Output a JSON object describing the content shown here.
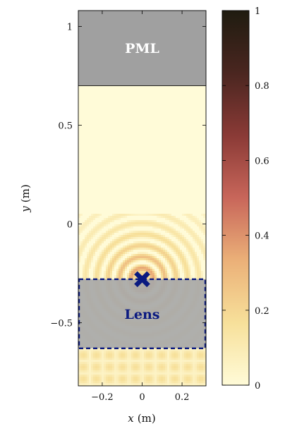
{
  "chart_data": {
    "type": "heatmap",
    "title": "",
    "xlabel_var": "x",
    "xlabel_unit": "(m)",
    "ylabel_var": "y",
    "ylabel_unit": "(m)",
    "xlim": [
      -0.32,
      0.32
    ],
    "ylim": [
      -0.82,
      1.08
    ],
    "xticks": [
      -0.2,
      0,
      0.2
    ],
    "xtick_labels": [
      "−0.2",
      "0",
      "0.2"
    ],
    "yticks": [
      1,
      0.5,
      0,
      -0.5
    ],
    "ytick_labels": [
      "1",
      "0.5",
      "0",
      "−0.5"
    ],
    "colorbar": {
      "range": [
        0,
        1
      ],
      "ticks": [
        0,
        0.2,
        0.4,
        0.6,
        0.8,
        1
      ],
      "tick_labels": [
        "0",
        "0.2",
        "0.4",
        "0.6",
        "0.8",
        "1"
      ],
      "colors": [
        "#fffbd8",
        "#f7e09a",
        "#ebb078",
        "#c8665a",
        "#8a3a36",
        "#4a2620",
        "#1f1c10"
      ]
    },
    "regions": [
      {
        "label": "PML",
        "x": [
          -0.32,
          0.32
        ],
        "y": [
          0.7,
          1.08
        ],
        "fill": "#a0a0a0",
        "label_color": "#ffffff"
      },
      {
        "label": "Lens",
        "x": [
          -0.32,
          0.32
        ],
        "y": [
          -0.63,
          -0.28
        ],
        "fill": "#a8a8a8",
        "label_color": "#0b1a80",
        "border_color": "#0b1a80",
        "dashed": true
      }
    ],
    "marker": {
      "x": 0.0,
      "y": -0.28,
      "shape": "x",
      "color": "#0b1a80"
    },
    "field": {
      "background_value": 0.03,
      "focus_center": [
        0.0,
        -0.28
      ],
      "focus_peak": 0.45
    }
  }
}
